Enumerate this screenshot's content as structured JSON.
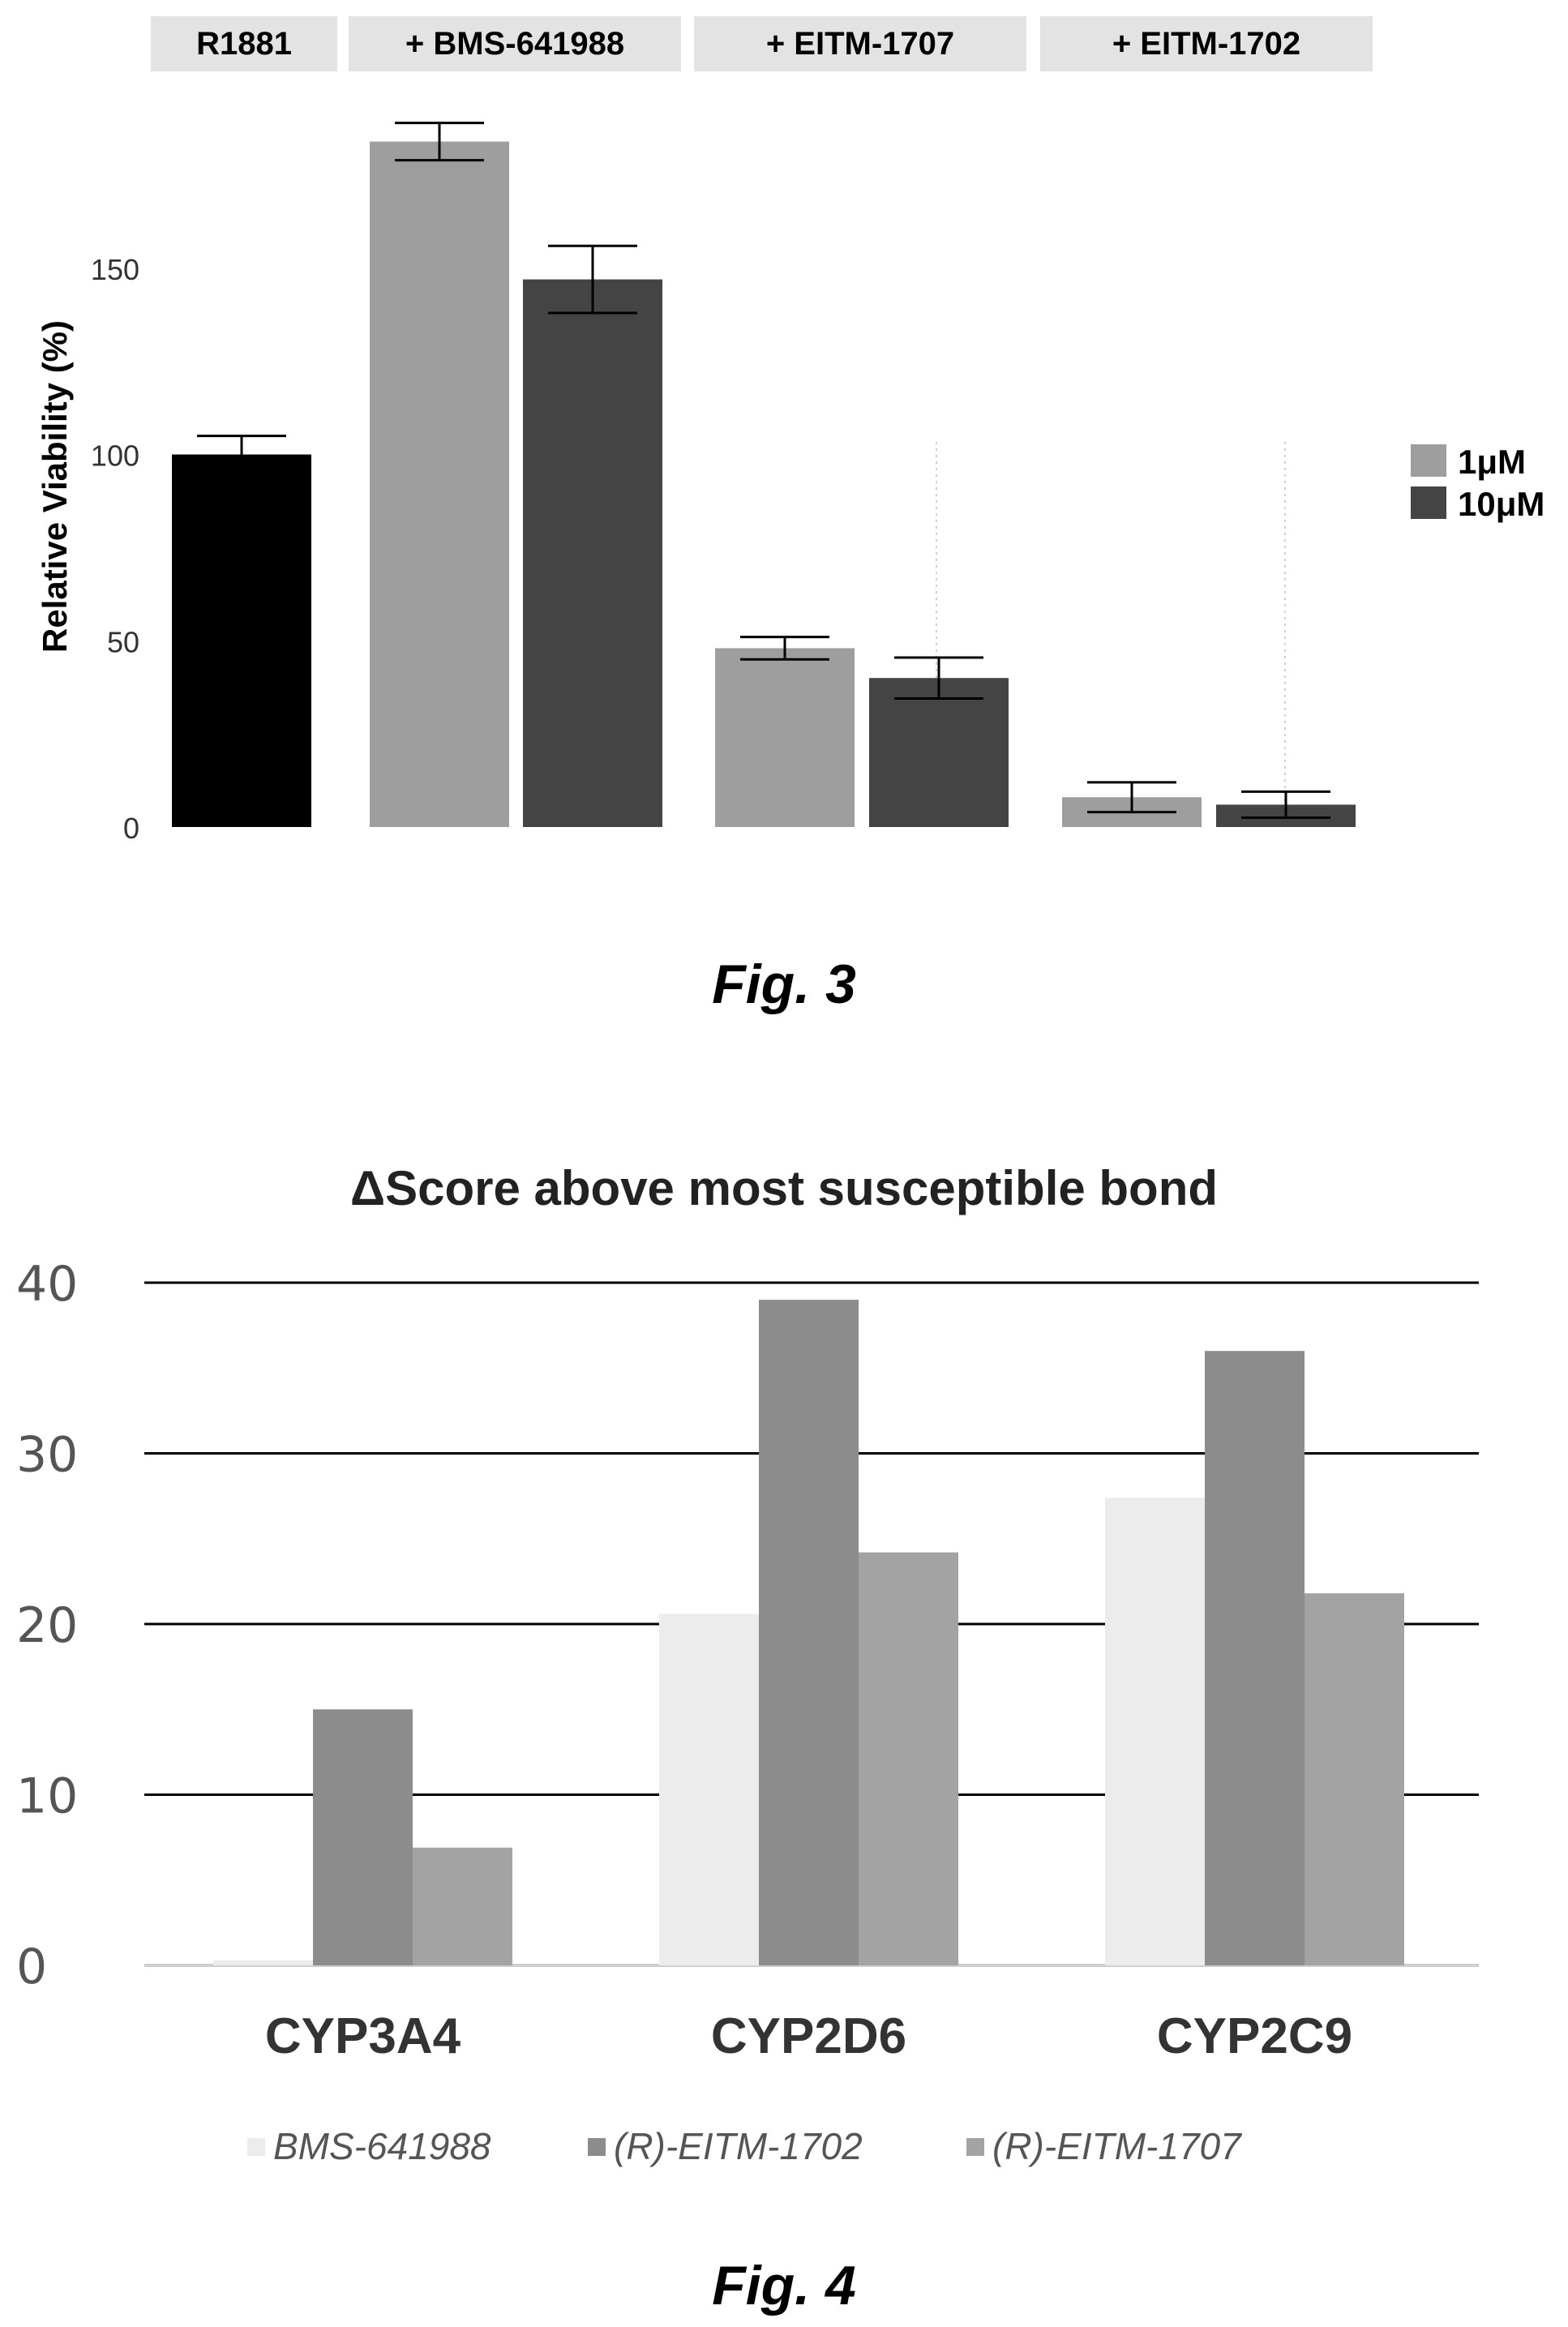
{
  "figures": {
    "fig3": {
      "caption": "Fig. 3"
    },
    "fig4": {
      "caption": "Fig. 4"
    }
  },
  "chart_data": [
    {
      "type": "bar",
      "group_headers": [
        "R1881",
        "+ BMS-641988",
        "+ EITM-1707",
        "+ EITM-1702"
      ],
      "ylabel": "Relative Viability (%)",
      "ylim": [
        0,
        185
      ],
      "yticks": [
        "0",
        "50",
        "100",
        "150"
      ],
      "legend": {
        "placement": "right",
        "entries": [
          {
            "label": "1μM",
            "color": "#9e9e9e"
          },
          {
            "label": "10μM",
            "color": "#444444"
          }
        ]
      },
      "bars": [
        {
          "group": "R1881",
          "series": "R1881",
          "value": 100,
          "error": 5,
          "color": "#000000"
        },
        {
          "group": "+ BMS-641988",
          "series": "1μM",
          "value": 184,
          "error": 5,
          "color": "#9e9e9e"
        },
        {
          "group": "+ BMS-641988",
          "series": "10μM",
          "value": 147,
          "error": 9,
          "color": "#444444"
        },
        {
          "group": "+ EITM-1707",
          "series": "1μM",
          "value": 48,
          "error": 3,
          "color": "#9e9e9e"
        },
        {
          "group": "+ EITM-1707",
          "series": "10μM",
          "value": 40,
          "error": 5.5,
          "color": "#444444"
        },
        {
          "group": "+ EITM-1702",
          "series": "1μM",
          "value": 8,
          "error": 4,
          "color": "#9e9e9e"
        },
        {
          "group": "+ EITM-1702",
          "series": "10μM",
          "value": 6,
          "error": 3.5,
          "color": "#444444"
        }
      ]
    },
    {
      "type": "bar",
      "title": "ΔScore above most susceptible bond",
      "categories": [
        "CYP3A4",
        "CYP2D6",
        "CYP2C9"
      ],
      "ylim": [
        0,
        40
      ],
      "yticks": [
        "0",
        "10",
        "20",
        "30",
        "40"
      ],
      "grid": true,
      "legend_placement": "bottom",
      "series": [
        {
          "name": "BMS-641988",
          "values": [
            0.3,
            20.6,
            27.4
          ],
          "color": "#ececec"
        },
        {
          "name": "(R)-EITM-1702",
          "values": [
            15.0,
            39.0,
            36.0
          ],
          "color": "#8c8c8c"
        },
        {
          "name": "(R)-EITM-1707",
          "values": [
            6.9,
            24.2,
            21.8
          ],
          "color": "#a3a3a3"
        }
      ]
    }
  ]
}
